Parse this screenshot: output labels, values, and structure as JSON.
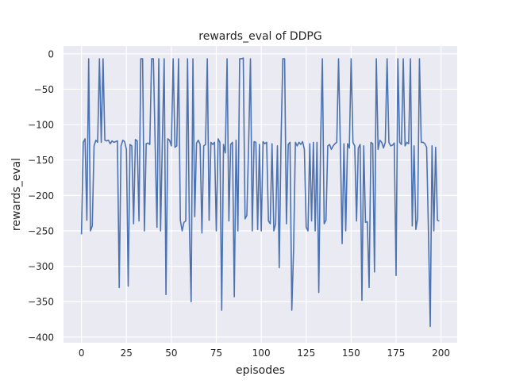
{
  "chart_data": {
    "type": "line",
    "title": "rewards_eval of DDPG",
    "xlabel": "episodes",
    "ylabel": "rewards_eval",
    "xlim": [
      -10,
      209
    ],
    "ylim": [
      -408,
      11
    ],
    "xticks": [
      0,
      25,
      50,
      75,
      100,
      125,
      150,
      175,
      200
    ],
    "yticks": [
      0,
      -50,
      -100,
      -150,
      -200,
      -250,
      -300,
      -350,
      -400
    ],
    "ytick_labels": [
      "0",
      "−50",
      "−100",
      "−150",
      "−200",
      "−250",
      "−300",
      "−350",
      "−400"
    ],
    "grid": true,
    "background_color": "#eaeaf2",
    "line_color": "#4c72b0",
    "series": [
      {
        "values": [
          -255,
          -125,
          -120,
          -235,
          -7,
          -250,
          -243,
          -130,
          -122,
          -125,
          -7,
          -125,
          -7,
          -122,
          -123,
          -122,
          -127,
          -123,
          -125,
          -124,
          -123,
          -330,
          -130,
          -122,
          -124,
          -135,
          -328,
          -128,
          -130,
          -240,
          -121,
          -123,
          -236,
          -7,
          -7,
          -250,
          -127,
          -126,
          -128,
          -7,
          -7,
          -130,
          -245,
          -7,
          -250,
          -122,
          -7,
          -340,
          -120,
          -122,
          -130,
          -7,
          -132,
          -130,
          -7,
          -235,
          -250,
          -238,
          -236,
          -7,
          -240,
          -350,
          -7,
          -230,
          -126,
          -122,
          -128,
          -253,
          -130,
          -128,
          -7,
          -235,
          -125,
          -128,
          -125,
          -250,
          -120,
          -125,
          -362,
          -128,
          -140,
          -7,
          -236,
          -128,
          -125,
          -343,
          -122,
          -250,
          -7,
          -7,
          -6,
          -233,
          -228,
          -125,
          -7,
          -250,
          -124,
          -125,
          -248,
          -128,
          -250,
          -124,
          -127,
          -125,
          -236,
          -240,
          -127,
          -250,
          -240,
          -130,
          -302,
          -125,
          -7,
          -7,
          -240,
          -128,
          -125,
          -362,
          -275,
          -125,
          -130,
          -125,
          -128,
          -124,
          -135,
          -245,
          -250,
          -127,
          -236,
          -125,
          -250,
          -125,
          -337,
          -128,
          -7,
          -240,
          -235,
          -130,
          -128,
          -135,
          -130,
          -127,
          -125,
          -7,
          -130,
          -268,
          -127,
          -250,
          -127,
          -133,
          -7,
          -125,
          -130,
          -236,
          -133,
          -128,
          -348,
          -130,
          -238,
          -237,
          -330,
          -125,
          -127,
          -308,
          -7,
          -135,
          -122,
          -125,
          -133,
          -125,
          -7,
          -125,
          -130,
          -129,
          -126,
          -313,
          -7,
          -125,
          -128,
          -7,
          -130,
          -125,
          -127,
          -7,
          -243,
          -130,
          -248,
          -232,
          -7,
          -125,
          -125,
          -127,
          -132,
          -250,
          -385,
          -130,
          -250,
          -132,
          -235,
          -236
        ]
      }
    ]
  }
}
